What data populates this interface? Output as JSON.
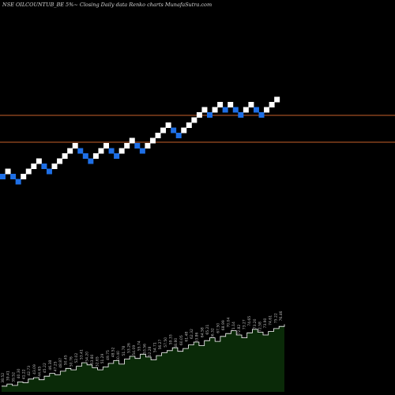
{
  "header": {
    "text": "NSE OILCOUNTUB_BE 5%~  Closing Daily data  Renko  charts MunafaSutra.com"
  },
  "colors": {
    "background": "#000000",
    "up_brick": "#ffffff",
    "down_brick": "#1e6fe6",
    "reference_line": "#c8602a",
    "area_fill": "#0a2a08",
    "area_stroke": "#ffffff",
    "label_text": "#bbbbbb"
  },
  "chart_data": {
    "type": "renko",
    "brick_size_percent": 5,
    "reference_lines": [
      {
        "y": 146
      },
      {
        "y": 180
      }
    ],
    "bricks": [
      {
        "col": 0,
        "level": 0,
        "dir": "down"
      },
      {
        "col": 1,
        "level": 1,
        "dir": "up"
      },
      {
        "col": 2,
        "level": 0,
        "dir": "down"
      },
      {
        "col": 3,
        "level": -1,
        "dir": "down"
      },
      {
        "col": 4,
        "level": 0,
        "dir": "up"
      },
      {
        "col": 5,
        "level": 1,
        "dir": "up"
      },
      {
        "col": 6,
        "level": 2,
        "dir": "up"
      },
      {
        "col": 7,
        "level": 3,
        "dir": "up"
      },
      {
        "col": 8,
        "level": 2,
        "dir": "down"
      },
      {
        "col": 9,
        "level": 1,
        "dir": "down"
      },
      {
        "col": 10,
        "level": 2,
        "dir": "up"
      },
      {
        "col": 11,
        "level": 3,
        "dir": "up"
      },
      {
        "col": 12,
        "level": 4,
        "dir": "up"
      },
      {
        "col": 13,
        "level": 5,
        "dir": "up"
      },
      {
        "col": 14,
        "level": 6,
        "dir": "up"
      },
      {
        "col": 15,
        "level": 5,
        "dir": "down"
      },
      {
        "col": 16,
        "level": 4,
        "dir": "down"
      },
      {
        "col": 17,
        "level": 3,
        "dir": "down"
      },
      {
        "col": 18,
        "level": 4,
        "dir": "up"
      },
      {
        "col": 19,
        "level": 5,
        "dir": "up"
      },
      {
        "col": 20,
        "level": 6,
        "dir": "up"
      },
      {
        "col": 21,
        "level": 5,
        "dir": "down"
      },
      {
        "col": 22,
        "level": 4,
        "dir": "down"
      },
      {
        "col": 23,
        "level": 5,
        "dir": "up"
      },
      {
        "col": 24,
        "level": 6,
        "dir": "up"
      },
      {
        "col": 25,
        "level": 7,
        "dir": "up"
      },
      {
        "col": 26,
        "level": 6,
        "dir": "down"
      },
      {
        "col": 27,
        "level": 5,
        "dir": "down"
      },
      {
        "col": 28,
        "level": 6,
        "dir": "up"
      },
      {
        "col": 29,
        "level": 7,
        "dir": "up"
      },
      {
        "col": 30,
        "level": 8,
        "dir": "up"
      },
      {
        "col": 31,
        "level": 9,
        "dir": "up"
      },
      {
        "col": 32,
        "level": 10,
        "dir": "up"
      },
      {
        "col": 33,
        "level": 9,
        "dir": "down"
      },
      {
        "col": 34,
        "level": 8,
        "dir": "down"
      },
      {
        "col": 35,
        "level": 9,
        "dir": "up"
      },
      {
        "col": 36,
        "level": 10,
        "dir": "up"
      },
      {
        "col": 37,
        "level": 11,
        "dir": "up"
      },
      {
        "col": 38,
        "level": 12,
        "dir": "up"
      },
      {
        "col": 39,
        "level": 13,
        "dir": "up"
      },
      {
        "col": 40,
        "level": 12,
        "dir": "down"
      },
      {
        "col": 41,
        "level": 13,
        "dir": "up"
      },
      {
        "col": 42,
        "level": 14,
        "dir": "up"
      },
      {
        "col": 43,
        "level": 13,
        "dir": "down"
      },
      {
        "col": 44,
        "level": 14,
        "dir": "up"
      },
      {
        "col": 45,
        "level": 13,
        "dir": "down"
      },
      {
        "col": 46,
        "level": 12,
        "dir": "down"
      },
      {
        "col": 47,
        "level": 13,
        "dir": "up"
      },
      {
        "col": 48,
        "level": 14,
        "dir": "up"
      },
      {
        "col": 49,
        "level": 13,
        "dir": "down"
      },
      {
        "col": 50,
        "level": 12,
        "dir": "down"
      },
      {
        "col": 51,
        "level": 13,
        "dir": "up"
      },
      {
        "col": 52,
        "level": 14,
        "dir": "up"
      },
      {
        "col": 53,
        "level": 15,
        "dir": "up"
      }
    ],
    "price_labels": [
      "38.52",
      "39.41",
      "39.52",
      "40.30",
      "41.22",
      "42.73",
      "43.09",
      "44.65",
      "45.22",
      "46.38",
      "47.25",
      "48.87",
      "50.45",
      "50.76",
      "52.02",
      "53.41",
      "54.20",
      "53.80",
      "52.65",
      "51.29",
      "49.75",
      "48.52",
      "50.40",
      "51.78",
      "53.26",
      "54.09",
      "55.74",
      "53.56",
      "52.28",
      "54.71",
      "56.27",
      "57.50",
      "59.33",
      "58.80",
      "60.05",
      "61.48",
      "62.32",
      "63.86",
      "64.58",
      "65.21",
      "66.32",
      "67.50",
      "68.99",
      "70.04",
      "71.14",
      "72.82",
      "73.27",
      "74.65",
      "73.20",
      "72.58",
      "73.90",
      "74.61",
      "75.22",
      "76.46"
    ],
    "area_values": [
      8,
      11,
      9,
      14,
      13,
      18,
      20,
      17,
      22,
      26,
      24,
      29,
      33,
      31,
      36,
      41,
      38,
      34,
      31,
      35,
      40,
      44,
      39,
      46,
      50,
      47,
      53,
      49,
      45,
      51,
      55,
      58,
      62,
      57,
      61,
      66,
      70,
      65,
      72,
      76,
      71,
      78,
      82,
      86,
      80,
      76,
      83,
      88,
      84,
      80,
      85,
      89,
      92,
      95
    ]
  }
}
